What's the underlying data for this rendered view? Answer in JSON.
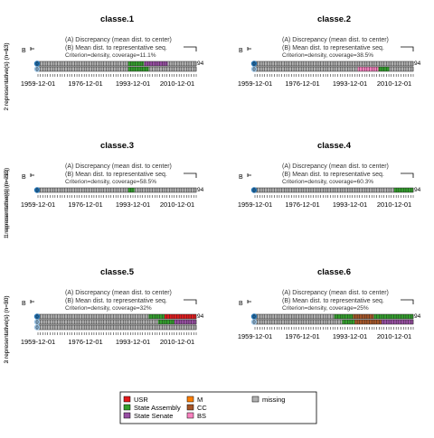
{
  "chart_data": {
    "type": "representative-sequence-plot",
    "axis_ticks": [
      "1959-12-01",
      "1976-12-01",
      "1993-12-01",
      "2010-12-01"
    ],
    "panel_texts": {
      "line_a": "(A) Discrepancy (mean dist. to center)",
      "line_b": "(B) Mean dist. to representative seq.",
      "criterion": "Criterion=density, coverage="
    },
    "scale_labels": {
      "a": "A",
      "b": "B",
      "zero": "0",
      "max": "94"
    },
    "states": [
      {
        "code": "USR",
        "label": "USR",
        "color": "#e31a1c"
      },
      {
        "code": "SA",
        "label": "State Assembly",
        "color": "#33a02c"
      },
      {
        "code": "SS",
        "label": "State Senate",
        "color": "#984ea3"
      },
      {
        "code": "M",
        "label": "M",
        "color": "#ff7f00"
      },
      {
        "code": "CC",
        "label": "CC",
        "color": "#a65628"
      },
      {
        "code": "BS",
        "label": "BS",
        "color": "#f781bf"
      },
      {
        "code": "missing",
        "label": "missing",
        "color": "#b0b0b0"
      }
    ],
    "panels": [
      {
        "title": "classe.1",
        "ylabel": "2 representative(s) (n=63)",
        "coverage": "11.1%",
        "sequences": [
          [
            {
              "state": "missing",
              "from": 0,
              "to": 0.57
            },
            {
              "state": "SA",
              "from": 0.57,
              "to": 0.67
            },
            {
              "state": "SS",
              "from": 0.67,
              "to": 0.82
            },
            {
              "state": "missing",
              "from": 0.82,
              "to": 1
            }
          ],
          [
            {
              "state": "missing",
              "from": 0,
              "to": 0.57
            },
            {
              "state": "SA",
              "from": 0.57,
              "to": 0.7
            },
            {
              "state": "missing",
              "from": 0.7,
              "to": 1
            }
          ]
        ]
      },
      {
        "title": "classe.2",
        "ylabel": "2 representative(s) (n=13)",
        "coverage": "38.5%",
        "sequences": [
          [
            {
              "state": "missing",
              "from": 0,
              "to": 1
            }
          ],
          [
            {
              "state": "missing",
              "from": 0,
              "to": 0.65
            },
            {
              "state": "BS",
              "from": 0.65,
              "to": 0.78
            },
            {
              "state": "SA",
              "from": 0.78,
              "to": 0.85
            },
            {
              "state": "missing",
              "from": 0.85,
              "to": 1
            }
          ]
        ]
      },
      {
        "title": "classe.3",
        "ylabel": "1 representative(s) (n=212)",
        "coverage": "58.5%",
        "sequences": [
          [
            {
              "state": "missing",
              "from": 0,
              "to": 0.57
            },
            {
              "state": "SA",
              "from": 0.57,
              "to": 0.61
            },
            {
              "state": "missing",
              "from": 0.61,
              "to": 1
            }
          ]
        ]
      },
      {
        "title": "classe.4",
        "ylabel": "1 representative(s) (n=68)",
        "coverage": "60.3%",
        "sequences": [
          [
            {
              "state": "missing",
              "from": 0,
              "to": 0.88
            },
            {
              "state": "SA",
              "from": 0.88,
              "to": 1
            }
          ]
        ]
      },
      {
        "title": "classe.5",
        "ylabel": "3 representative(s) (n=50)",
        "coverage": "32%",
        "sequences": [
          [
            {
              "state": "missing",
              "from": 0,
              "to": 0.7
            },
            {
              "state": "SA",
              "from": 0.7,
              "to": 0.8
            },
            {
              "state": "USR",
              "from": 0.8,
              "to": 1
            }
          ],
          [
            {
              "state": "missing",
              "from": 0,
              "to": 0.76
            },
            {
              "state": "SA",
              "from": 0.76,
              "to": 0.86
            },
            {
              "state": "SS",
              "from": 0.86,
              "to": 1
            }
          ],
          [
            {
              "state": "missing",
              "from": 0,
              "to": 1
            }
          ]
        ]
      },
      {
        "title": "classe.6",
        "ylabel": "2 representative(s) (n=20)",
        "coverage": "25%",
        "sequences": [
          [
            {
              "state": "missing",
              "from": 0,
              "to": 0.5
            },
            {
              "state": "SA",
              "from": 0.5,
              "to": 0.62
            },
            {
              "state": "CC",
              "from": 0.62,
              "to": 0.75
            },
            {
              "state": "SA",
              "from": 0.75,
              "to": 1
            }
          ],
          [
            {
              "state": "missing",
              "from": 0,
              "to": 0.55
            },
            {
              "state": "SA",
              "from": 0.55,
              "to": 0.63
            },
            {
              "state": "CC",
              "from": 0.63,
              "to": 0.8
            },
            {
              "state": "SS",
              "from": 0.8,
              "to": 1
            }
          ]
        ]
      }
    ],
    "legend": {
      "placement": "bottom-center",
      "columns": [
        [
          "USR",
          "SA",
          "SS"
        ],
        [
          "M",
          "CC",
          "BS"
        ],
        [
          "missing"
        ]
      ]
    }
  }
}
